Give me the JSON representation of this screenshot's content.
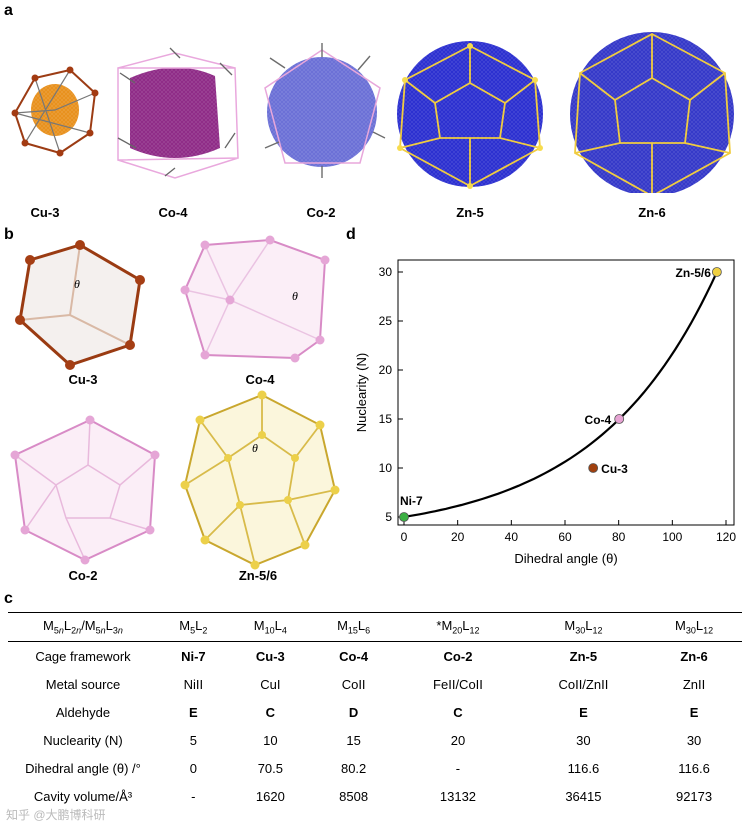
{
  "panels": {
    "a": "a",
    "b": "b",
    "c": "c",
    "d": "d"
  },
  "panel_a_labels": [
    "Cu-3",
    "Co-4",
    "Co-2",
    "Zn-5",
    "Zn-6"
  ],
  "panel_b": {
    "labels": [
      "Cu-3",
      "Co-4",
      "Co-2",
      "Zn-5/6"
    ],
    "theta": "θ"
  },
  "chart_data": {
    "type": "scatter",
    "xlabel": "Dihedral angle (θ)",
    "ylabel": "Nuclearity (N)",
    "xlim": [
      0,
      120
    ],
    "ylim": [
      5,
      30
    ],
    "xticks": [
      0,
      20,
      40,
      60,
      80,
      100,
      120
    ],
    "yticks": [
      5,
      10,
      15,
      20,
      25,
      30
    ],
    "points": [
      {
        "label": "Ni-7",
        "x": 0,
        "y": 5,
        "color": "#3cb043"
      },
      {
        "label": "Cu-3",
        "x": 70.5,
        "y": 10,
        "color": "#a0400e"
      },
      {
        "label": "Co-4",
        "x": 80.2,
        "y": 15,
        "color": "#e6a3d3"
      },
      {
        "label": "Zn-5/6",
        "x": 116.6,
        "y": 30,
        "color": "#f0d040"
      }
    ],
    "curve_color": "#000000"
  },
  "table": {
    "header_label": "M5nL2n/M5nL3n",
    "header": [
      {
        "base": "M",
        "s1": "5",
        "mid": "L",
        "s2": "2"
      },
      {
        "base": "M",
        "s1": "10",
        "mid": "L",
        "s2": "4"
      },
      {
        "base": "M",
        "s1": "15",
        "mid": "L",
        "s2": "6"
      },
      {
        "base": "*M",
        "s1": "20",
        "mid": "L",
        "s2": "12"
      },
      {
        "base": "M",
        "s1": "30",
        "mid": "L",
        "s2": "12"
      },
      {
        "base": "M",
        "s1": "30",
        "mid": "L",
        "s2": "12"
      }
    ],
    "rows": [
      {
        "label": "Cage framework",
        "bold": true,
        "values": [
          "Ni-7",
          "Cu-3",
          "Co-4",
          "Co-2",
          "Zn-5",
          "Zn-6"
        ]
      },
      {
        "label": "Metal source",
        "bold": false,
        "values": [
          "NiII",
          "CuI",
          "CoII",
          "FeII/CoII",
          "CoII/ZnII",
          "ZnII"
        ]
      },
      {
        "label": "Aldehyde",
        "bold": true,
        "values": [
          "E",
          "C",
          "D",
          "C",
          "E",
          "E"
        ]
      },
      {
        "label": "Nuclearity (N)",
        "bold": false,
        "values": [
          "5",
          "10",
          "15",
          "20",
          "30",
          "30"
        ]
      },
      {
        "label": "Dihedral angle (θ) /°",
        "bold": false,
        "values": [
          "0",
          "70.5",
          "80.2",
          "-",
          "116.6",
          "116.6"
        ]
      },
      {
        "label": "Cavity volume/Å³",
        "bold": false,
        "values": [
          "-",
          "1620",
          "8508",
          "13132",
          "36415",
          "92173"
        ]
      }
    ]
  },
  "watermark": "知乎 @大鹏博科研"
}
